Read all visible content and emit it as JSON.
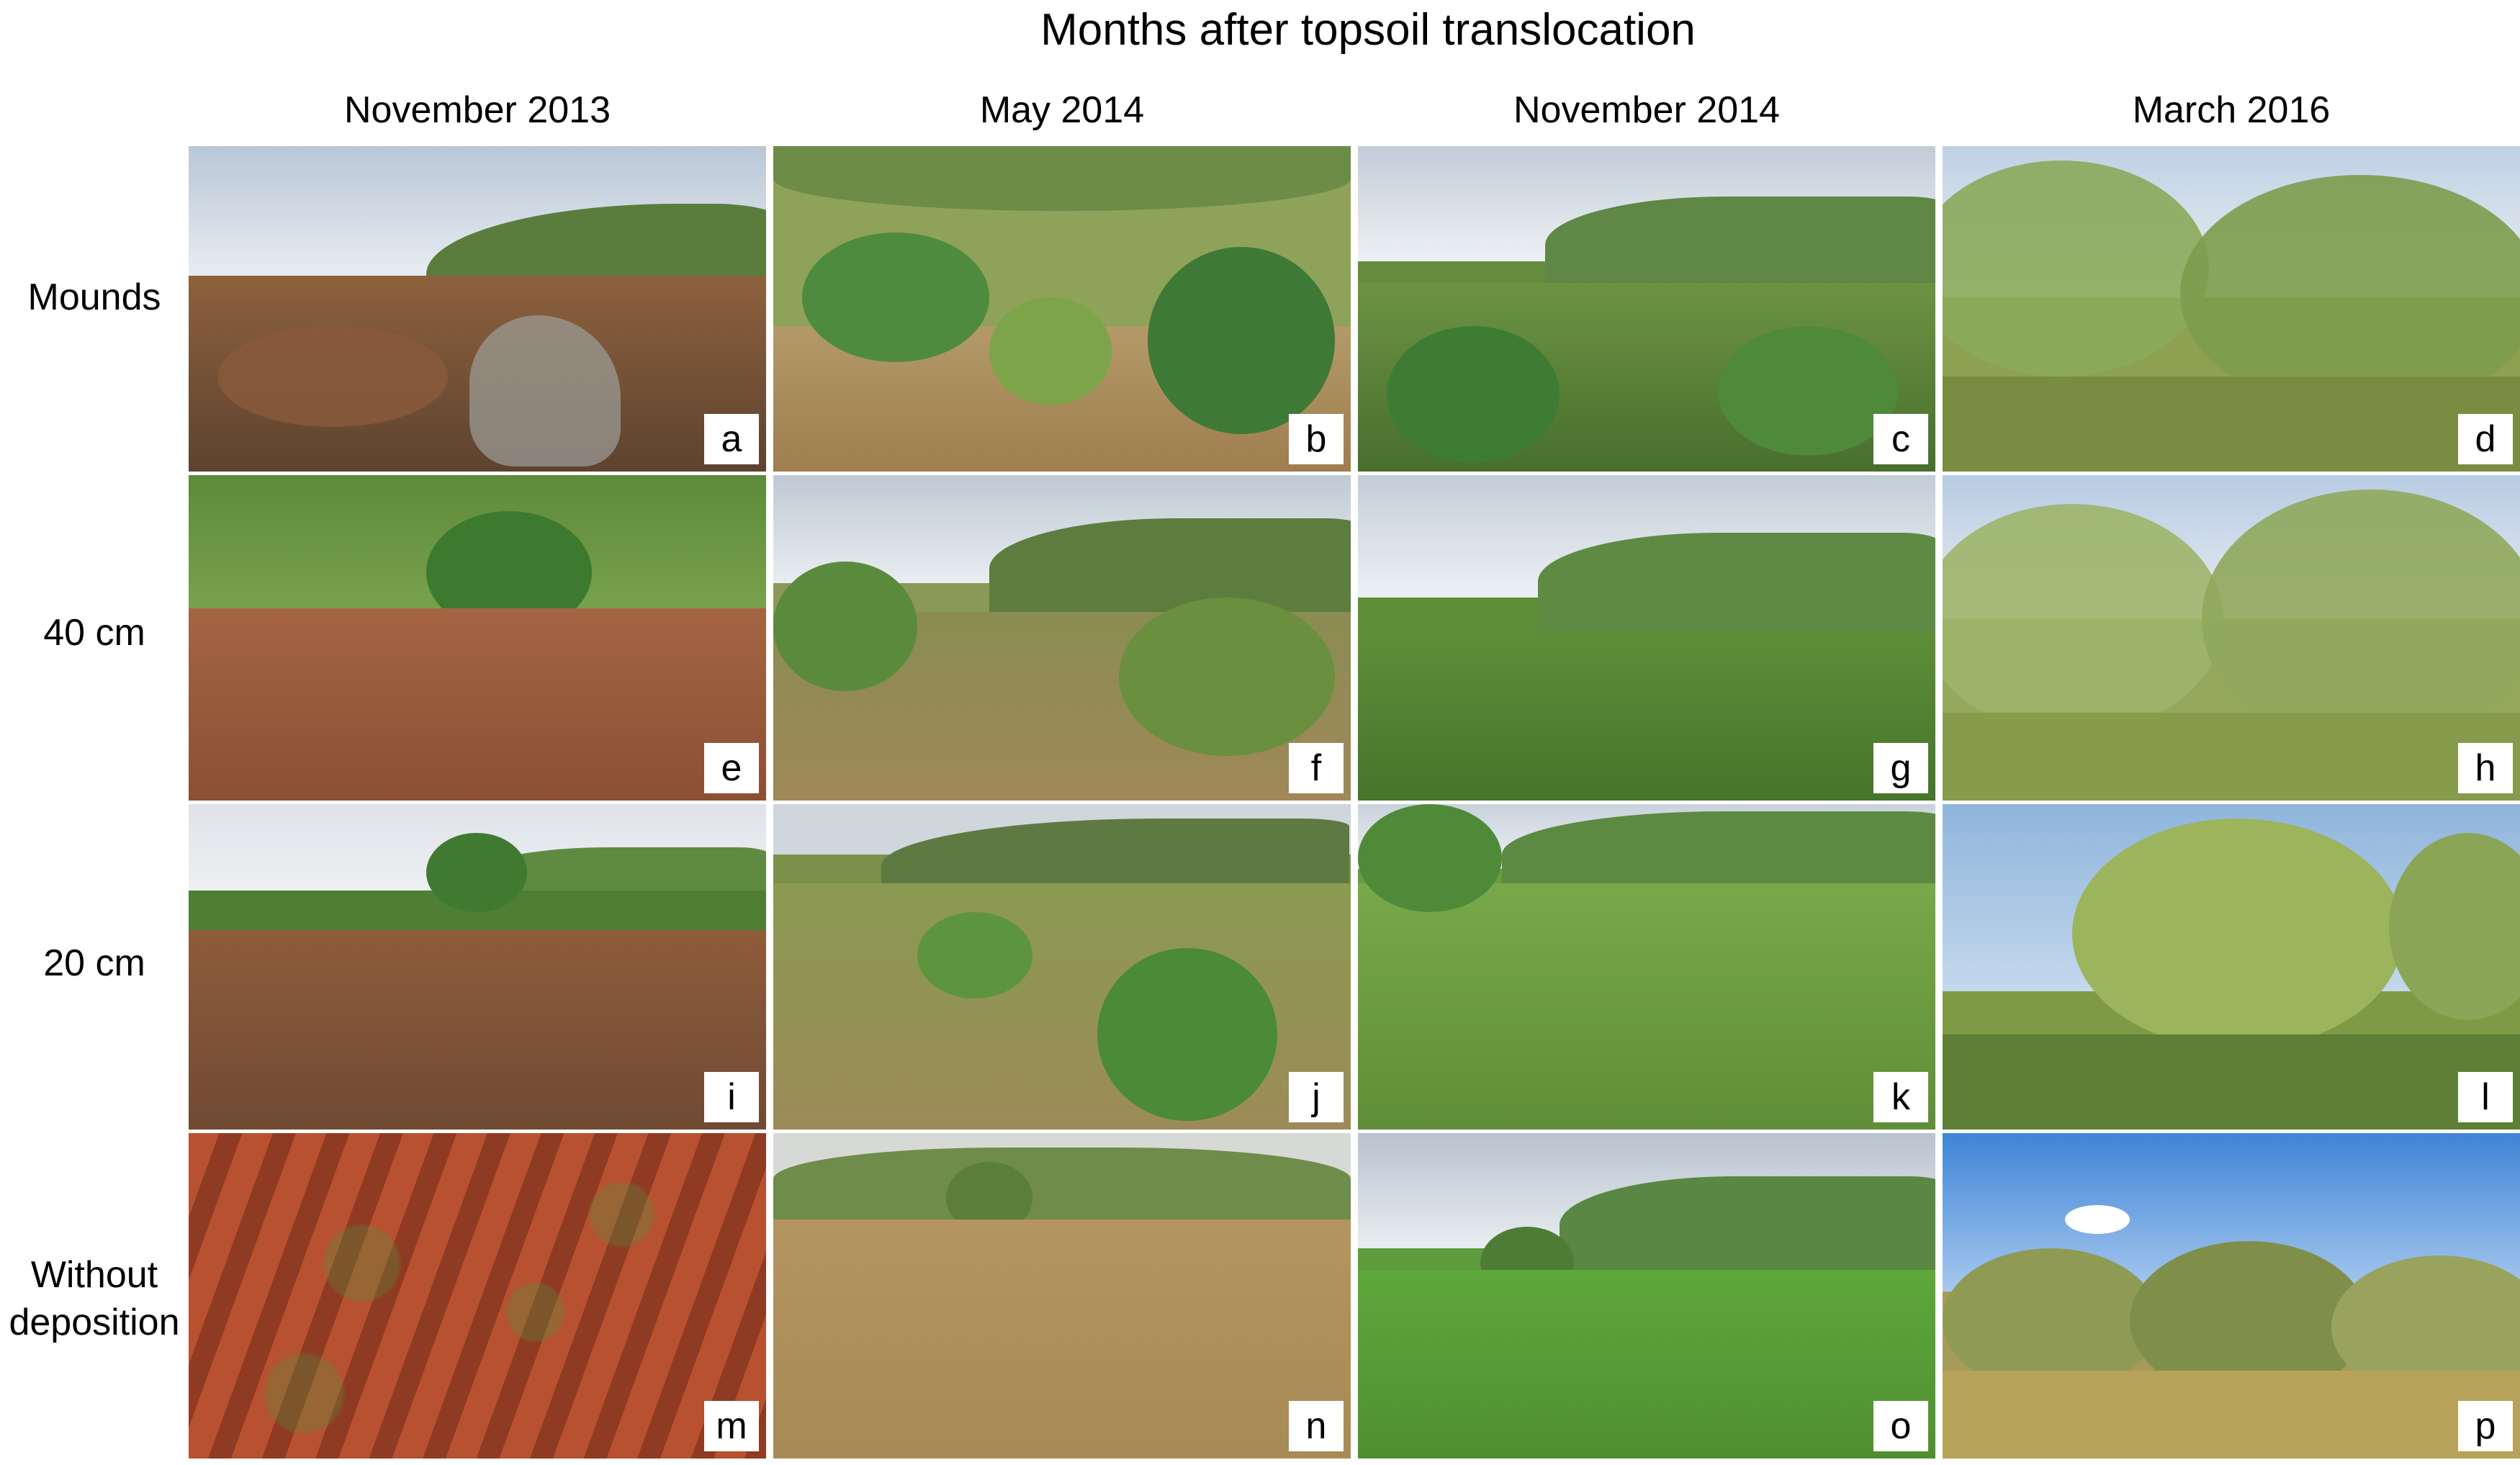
{
  "figure": {
    "title": "Months after topsoil translocation",
    "columns": [
      "November 2013",
      "May 2014",
      "November 2014",
      "March 2016"
    ],
    "rows": [
      {
        "label": [
          "Mounds"
        ],
        "panels": [
          "a",
          "b",
          "c",
          "d"
        ]
      },
      {
        "label": [
          "40 cm"
        ],
        "panels": [
          "e",
          "f",
          "g",
          "h"
        ]
      },
      {
        "label": [
          "20 cm"
        ],
        "panels": [
          "i",
          "j",
          "k",
          "l"
        ]
      },
      {
        "label": [
          "Without",
          "deposition"
        ],
        "panels": [
          "m",
          "n",
          "o",
          "p"
        ]
      }
    ]
  },
  "colors": {
    "sky": "#dfe6ee",
    "bright_sky": "#a9c8ea",
    "ridge": "#5d7f3e",
    "soil": "#9a5a36",
    "red_soil": "#b8492c",
    "green_veg": "#6f9a3b",
    "dry_grass": "#b79a5c",
    "shrub": "#9ab25b"
  }
}
